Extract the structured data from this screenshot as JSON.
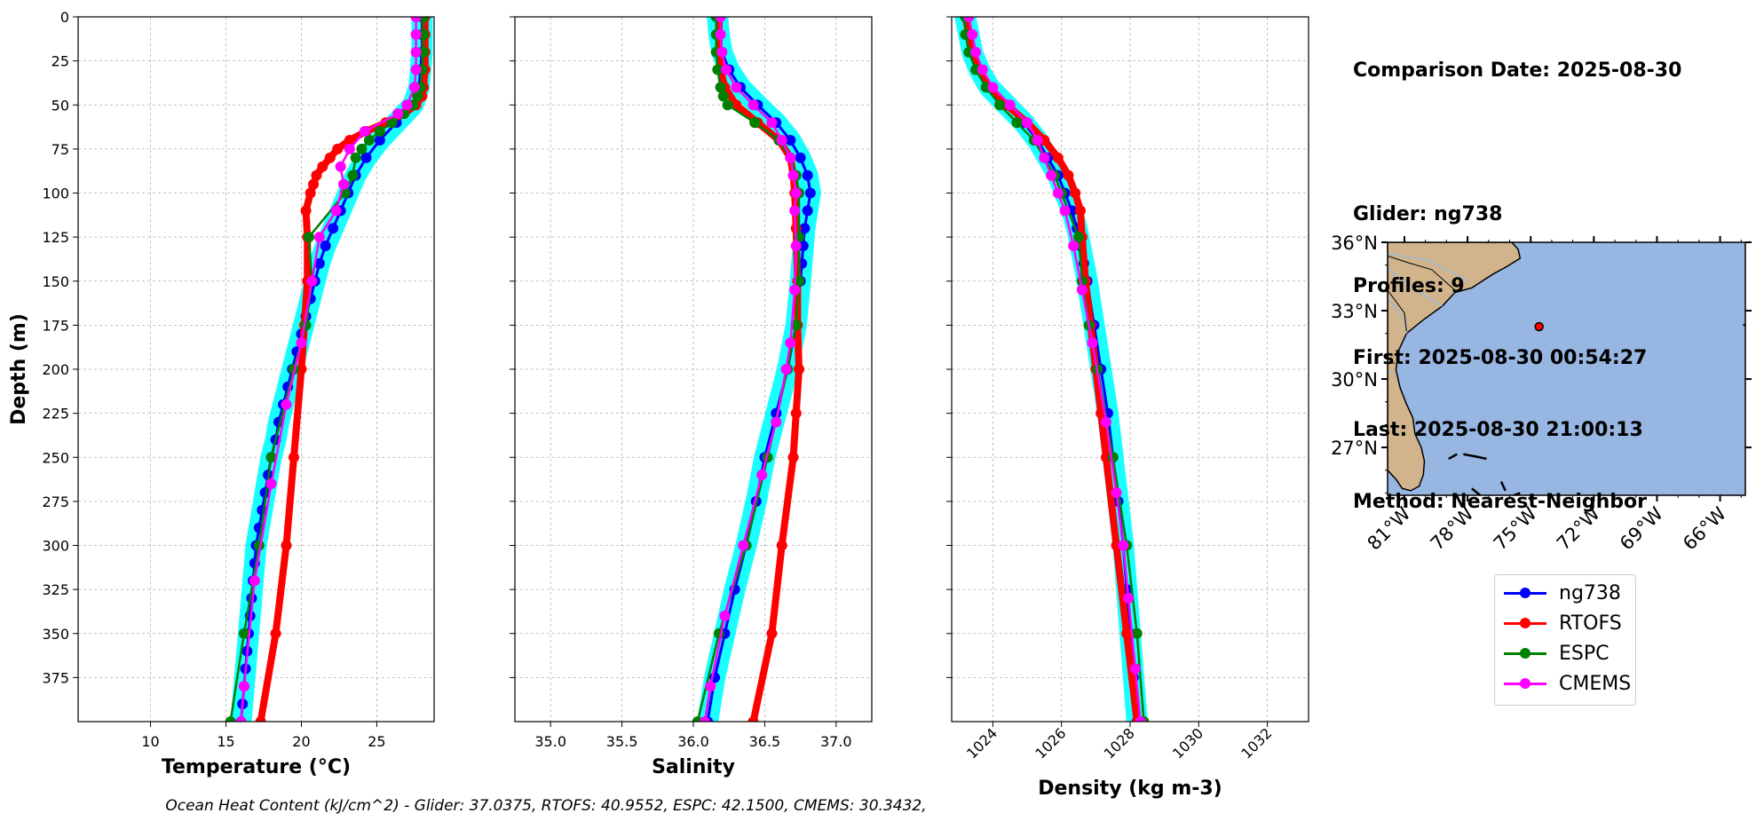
{
  "info": {
    "date_line": "Comparison Date: 2025-08-30",
    "glider_line": "Glider: ng738",
    "profiles_line": "Profiles: 9",
    "first_line": "First: 2025-08-30 00:54:27",
    "last_line": "Last: 2025-08-30 21:00:13",
    "method_line": "Method: Nearest-Neighbor"
  },
  "footer": "Ocean Heat Content (kJ/cm^2) - Glider: 37.0375,  RTOFS: 40.9552,  ESPC: 42.1500,  CMEMS: 30.3432,",
  "legend": [
    {
      "name": "ng738",
      "color": "#0000ff"
    },
    {
      "name": "RTOFS",
      "color": "#ff0000"
    },
    {
      "name": "ESPC",
      "color": "#008000"
    },
    {
      "name": "CMEMS",
      "color": "#ff00ff"
    }
  ],
  "map": {
    "lat_ticks": [
      "36°N",
      "33°N",
      "30°N",
      "27°N"
    ],
    "lon_ticks": [
      "81°W",
      "78°W",
      "75°W",
      "72°W",
      "69°W",
      "66°W"
    ],
    "ocean_color": "#97b6e1",
    "land_color": "#d2b48c",
    "glider_position": {
      "lon": -74.6,
      "lat": 32.3
    }
  },
  "chart_data": [
    {
      "type": "line",
      "xlabel": "Temperature (°C)",
      "ylabel": "Depth (m)",
      "xlim": [
        5.2,
        28.8
      ],
      "ylim": [
        400,
        0
      ],
      "xticks": [
        "10",
        "15",
        "20",
        "25"
      ],
      "yticks": [
        "0",
        "25",
        "50",
        "75",
        "100",
        "125",
        "150",
        "175",
        "200",
        "225",
        "250",
        "275",
        "300",
        "325",
        "350",
        "375"
      ],
      "grid": true,
      "series": [
        {
          "name": "ng738",
          "band": true,
          "depth": [
            0,
            10,
            20,
            30,
            40,
            50,
            60,
            70,
            80,
            90,
            100,
            110,
            120,
            130,
            140,
            150,
            160,
            170,
            180,
            190,
            200,
            210,
            220,
            230,
            240,
            250,
            260,
            270,
            280,
            290,
            300,
            310,
            320,
            330,
            340,
            350,
            360,
            370,
            380,
            390,
            400
          ],
          "values": [
            28.0,
            28.0,
            28.0,
            27.9,
            27.8,
            27.4,
            26.3,
            25.2,
            24.3,
            23.6,
            23.1,
            22.6,
            22.1,
            21.6,
            21.2,
            20.9,
            20.6,
            20.3,
            20.0,
            19.7,
            19.4,
            19.1,
            18.8,
            18.5,
            18.3,
            18.0,
            17.8,
            17.6,
            17.4,
            17.2,
            17.0,
            16.9,
            16.8,
            16.7,
            16.6,
            16.5,
            16.4,
            16.3,
            16.2,
            16.1,
            16.0
          ]
        },
        {
          "name": "RTOFS",
          "thick": true,
          "depth": [
            0,
            10,
            20,
            30,
            40,
            45,
            50,
            55,
            60,
            65,
            70,
            75,
            80,
            85,
            90,
            95,
            100,
            110,
            125,
            150,
            175,
            200,
            250,
            300,
            350,
            400
          ],
          "values": [
            28.2,
            28.2,
            28.2,
            28.2,
            28.1,
            28.0,
            27.6,
            26.8,
            25.6,
            24.3,
            23.2,
            22.4,
            21.9,
            21.4,
            21.0,
            20.8,
            20.6,
            20.3,
            20.4,
            20.4,
            20.2,
            20.0,
            19.5,
            19.0,
            18.3,
            17.3
          ]
        },
        {
          "name": "ESPC",
          "depth": [
            0,
            10,
            20,
            30,
            40,
            45,
            50,
            55,
            60,
            65,
            70,
            75,
            80,
            90,
            100,
            125,
            150,
            175,
            200,
            250,
            300,
            350,
            400
          ],
          "values": [
            28.1,
            28.1,
            28.1,
            28.0,
            27.9,
            27.7,
            27.4,
            26.8,
            26.0,
            25.2,
            24.5,
            24.0,
            23.6,
            23.4,
            22.9,
            20.5,
            20.7,
            20.3,
            19.5,
            18.0,
            17.2,
            16.2,
            15.3
          ]
        },
        {
          "name": "CMEMS",
          "depth": [
            0,
            10,
            20,
            30,
            40,
            50,
            55,
            65,
            75,
            85,
            95,
            110,
            125,
            150,
            185,
            220,
            265,
            320,
            380,
            400
          ],
          "values": [
            27.6,
            27.6,
            27.6,
            27.6,
            27.5,
            27.0,
            26.4,
            24.2,
            23.2,
            22.6,
            22.8,
            22.3,
            21.2,
            20.7,
            20.0,
            19.0,
            18.0,
            16.9,
            16.2,
            16.0
          ]
        }
      ]
    },
    {
      "type": "line",
      "xlabel": "Salinity",
      "ylabel": "",
      "xlim": [
        34.75,
        37.25
      ],
      "ylim": [
        400,
        0
      ],
      "xticks": [
        "35.0",
        "35.5",
        "36.0",
        "36.5",
        "37.0"
      ],
      "grid": true,
      "series": [
        {
          "name": "ng738",
          "band": true,
          "depth": [
            0,
            10,
            20,
            30,
            40,
            50,
            60,
            70,
            80,
            90,
            100,
            110,
            120,
            130,
            140,
            150,
            175,
            200,
            225,
            250,
            275,
            300,
            325,
            350,
            375,
            400
          ],
          "values": [
            36.17,
            36.18,
            36.2,
            36.25,
            36.33,
            36.45,
            36.58,
            36.68,
            36.75,
            36.8,
            36.82,
            36.8,
            36.78,
            36.77,
            36.76,
            36.75,
            36.72,
            36.66,
            36.58,
            36.5,
            36.44,
            36.37,
            36.29,
            36.22,
            36.15,
            36.1
          ]
        },
        {
          "name": "RTOFS",
          "thick": true,
          "depth": [
            0,
            10,
            20,
            30,
            40,
            50,
            60,
            70,
            80,
            90,
            100,
            120,
            150,
            175,
            200,
            225,
            250,
            300,
            350,
            400
          ],
          "values": [
            36.18,
            36.18,
            36.18,
            36.19,
            36.22,
            36.3,
            36.45,
            36.6,
            36.68,
            36.7,
            36.71,
            36.72,
            36.73,
            36.73,
            36.74,
            36.72,
            36.7,
            36.62,
            36.55,
            36.42
          ]
        },
        {
          "name": "ESPC",
          "depth": [
            0,
            10,
            20,
            30,
            40,
            45,
            50,
            60,
            70,
            80,
            90,
            100,
            125,
            150,
            175,
            200,
            250,
            300,
            350,
            400
          ],
          "values": [
            36.16,
            36.16,
            36.16,
            36.17,
            36.19,
            36.21,
            36.24,
            36.43,
            36.6,
            36.68,
            36.72,
            36.74,
            36.74,
            36.74,
            36.72,
            36.66,
            36.52,
            36.37,
            36.18,
            36.03
          ]
        },
        {
          "name": "CMEMS",
          "depth": [
            0,
            10,
            20,
            30,
            40,
            50,
            60,
            70,
            80,
            90,
            100,
            110,
            130,
            155,
            185,
            200,
            230,
            260,
            300,
            340,
            380,
            400
          ],
          "values": [
            36.19,
            36.19,
            36.2,
            36.23,
            36.3,
            36.42,
            36.55,
            36.62,
            36.68,
            36.7,
            36.72,
            36.71,
            36.72,
            36.71,
            36.68,
            36.65,
            36.58,
            36.48,
            36.35,
            36.22,
            36.12,
            36.08
          ]
        }
      ]
    },
    {
      "type": "line",
      "xlabel": "Density (kg m-3)",
      "ylabel": "",
      "xlim": [
        1022.8,
        1033.2
      ],
      "ylim": [
        400,
        0
      ],
      "xticks": [
        "1024",
        "1026",
        "1028",
        "1030",
        "1032"
      ],
      "xtick_rotation": -45,
      "grid": true,
      "series": [
        {
          "name": "ng738",
          "band": true,
          "depth": [
            0,
            10,
            20,
            30,
            40,
            50,
            60,
            70,
            80,
            90,
            100,
            110,
            120,
            130,
            140,
            150,
            175,
            200,
            225,
            250,
            275,
            300,
            325,
            350,
            375,
            400
          ],
          "values": [
            1023.2,
            1023.3,
            1023.4,
            1023.6,
            1023.9,
            1024.4,
            1024.9,
            1025.3,
            1025.6,
            1025.9,
            1026.1,
            1026.3,
            1026.45,
            1026.55,
            1026.65,
            1026.75,
            1026.95,
            1027.15,
            1027.35,
            1027.5,
            1027.65,
            1027.8,
            1027.9,
            1028.0,
            1028.1,
            1028.2
          ]
        },
        {
          "name": "RTOFS",
          "thick": true,
          "depth": [
            0,
            10,
            20,
            30,
            40,
            50,
            60,
            70,
            80,
            90,
            100,
            110,
            125,
            150,
            175,
            200,
            225,
            250,
            300,
            350,
            400
          ],
          "values": [
            1023.2,
            1023.3,
            1023.4,
            1023.6,
            1023.9,
            1024.4,
            1025.0,
            1025.5,
            1025.9,
            1026.2,
            1026.4,
            1026.55,
            1026.6,
            1026.7,
            1026.85,
            1027.0,
            1027.15,
            1027.3,
            1027.6,
            1027.9,
            1028.2
          ]
        },
        {
          "name": "ESPC",
          "depth": [
            0,
            10,
            20,
            30,
            40,
            50,
            60,
            70,
            80,
            90,
            100,
            125,
            150,
            175,
            200,
            250,
            300,
            350,
            400
          ],
          "values": [
            1023.2,
            1023.2,
            1023.3,
            1023.5,
            1023.8,
            1024.2,
            1024.7,
            1025.2,
            1025.5,
            1025.8,
            1026.0,
            1026.5,
            1026.6,
            1026.8,
            1027.05,
            1027.5,
            1027.9,
            1028.2,
            1028.4
          ]
        },
        {
          "name": "CMEMS",
          "depth": [
            0,
            10,
            20,
            30,
            40,
            50,
            60,
            70,
            80,
            90,
            100,
            110,
            130,
            155,
            185,
            230,
            270,
            300,
            330,
            370,
            400
          ],
          "values": [
            1023.3,
            1023.4,
            1023.5,
            1023.7,
            1024.0,
            1024.5,
            1025.0,
            1025.3,
            1025.5,
            1025.7,
            1025.9,
            1026.1,
            1026.35,
            1026.6,
            1026.9,
            1027.3,
            1027.6,
            1027.8,
            1027.95,
            1028.15,
            1028.3
          ]
        }
      ]
    }
  ]
}
